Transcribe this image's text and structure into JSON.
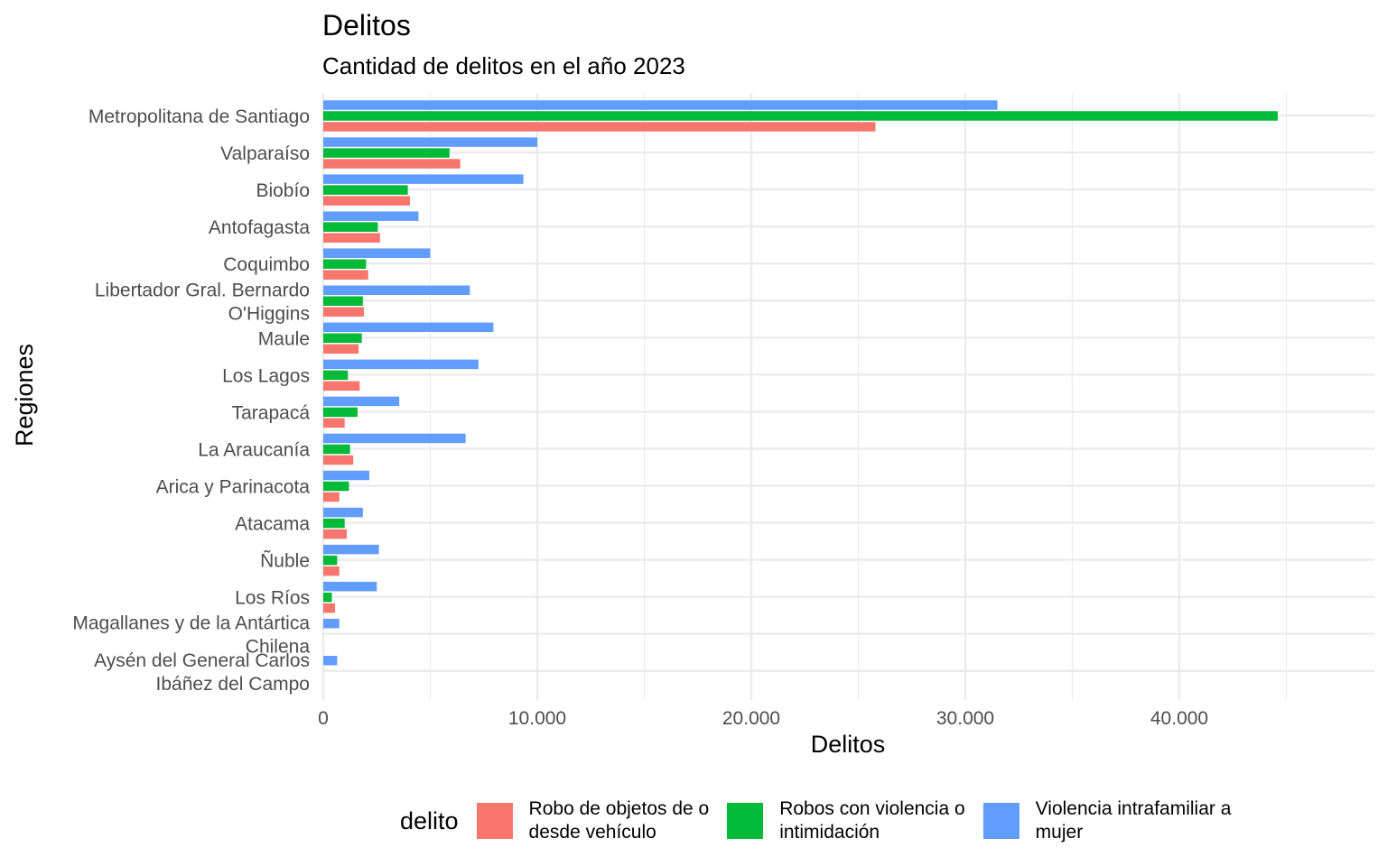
{
  "title": "Delitos",
  "subtitle": "Cantidad de delitos en el año 2023",
  "legend": {
    "title": "delito"
  },
  "colors": {
    "Robo de objetos de o desde vehículo": "#F8766D",
    "Robos con violencia o intimidación": "#00BA38",
    "Violencia intrafamiliar a mujer": "#619CFF",
    "grid": "#EBEBEB",
    "axis_text": "#4D4D4D"
  },
  "chart_data": {
    "type": "bar",
    "orientation": "horizontal",
    "title": "Delitos",
    "subtitle": "Cantidad de delitos en el año 2023",
    "xlabel": "Delitos",
    "ylabel": "Regiones",
    "xlim": [
      0,
      48000
    ],
    "x_ticks": [
      0,
      10000,
      20000,
      30000,
      40000
    ],
    "x_tick_labels": [
      "0",
      "10.000",
      "20.000",
      "30.000",
      "40.000"
    ],
    "grid": true,
    "legend_position": "bottom",
    "legend_title": "delito",
    "categories": [
      "Metropolitana de Santiago",
      "Valparaíso",
      "Biobío",
      "Antofagasta",
      "Coquimbo",
      "Libertador Gral. Bernardo O'Higgins",
      "Maule",
      "Los Lagos",
      "Tarapacá",
      "La Araucanía",
      "Arica y Parinacota",
      "Atacama",
      "Ñuble",
      "Los Ríos",
      "Magallanes y de la Antártica Chilena",
      "Aysén del General Carlos Ibáñez del Campo"
    ],
    "category_lines": [
      [
        "Metropolitana de Santiago"
      ],
      [
        "Valparaíso"
      ],
      [
        "Biobío"
      ],
      [
        "Antofagasta"
      ],
      [
        "Coquimbo"
      ],
      [
        "Libertador Gral. Bernardo",
        "O'Higgins"
      ],
      [
        "Maule"
      ],
      [
        "Los Lagos"
      ],
      [
        "Tarapacá"
      ],
      [
        "La Araucanía"
      ],
      [
        "Arica y Parinacota"
      ],
      [
        "Atacama"
      ],
      [
        "Ñuble"
      ],
      [
        "Los Ríos"
      ],
      [
        "Magallanes y de la Antártica",
        "Chilena"
      ],
      [
        "Aysén del General Carlos",
        "Ibáñez del Campo"
      ]
    ],
    "series": [
      {
        "name": "Robo de objetos de o desde vehículo",
        "label_lines": "Robo de objetos de o\ndesde vehículo",
        "color": "#F8766D",
        "values": [
          25800,
          6400,
          4050,
          2650,
          2100,
          1900,
          1650,
          1700,
          1000,
          1400,
          750,
          1100,
          750,
          550,
          0,
          0
        ]
      },
      {
        "name": "Robos con violencia o intimidación",
        "label_lines": "Robos con violencia o\nintimidación",
        "color": "#00BA38",
        "values": [
          44600,
          5900,
          3950,
          2550,
          2000,
          1850,
          1800,
          1150,
          1600,
          1250,
          1200,
          1000,
          650,
          400,
          0,
          0
        ]
      },
      {
        "name": "Violencia intrafamiliar a mujer",
        "label_lines": "Violencia intrafamiliar a\nmujer",
        "color": "#619CFF",
        "values": [
          31500,
          10000,
          9350,
          4450,
          5000,
          6850,
          7950,
          7250,
          3550,
          6650,
          2150,
          1850,
          2600,
          2500,
          750,
          650
        ]
      }
    ]
  }
}
